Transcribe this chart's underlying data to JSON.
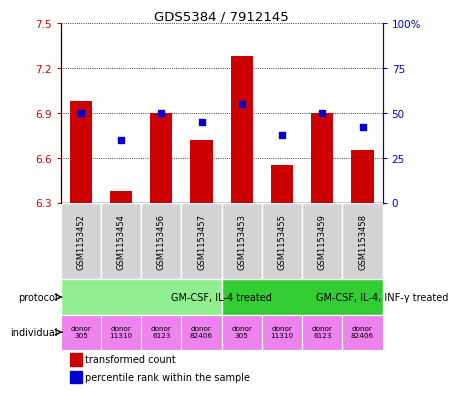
{
  "title": "GDS5384 / 7912145",
  "samples": [
    "GSM1153452",
    "GSM1153454",
    "GSM1153456",
    "GSM1153457",
    "GSM1153453",
    "GSM1153455",
    "GSM1153459",
    "GSM1153458"
  ],
  "bar_values": [
    6.98,
    6.38,
    6.9,
    6.72,
    7.28,
    6.55,
    6.9,
    6.65
  ],
  "dot_values": [
    50,
    35,
    50,
    45,
    55,
    38,
    50,
    42
  ],
  "ylim_left": [
    6.3,
    7.5
  ],
  "ylim_right": [
    0,
    100
  ],
  "yticks_left": [
    6.3,
    6.6,
    6.9,
    7.2,
    7.5
  ],
  "yticks_right": [
    0,
    25,
    50,
    75,
    100
  ],
  "ytick_labels_right": [
    "0",
    "25",
    "50",
    "75",
    "100%"
  ],
  "bar_color": "#cc0000",
  "dot_color": "#0000cc",
  "bar_bottom": 6.3,
  "protocols": [
    {
      "label": "GM-CSF, IL-4 treated",
      "span": [
        0,
        4
      ],
      "color": "#90ee90"
    },
    {
      "label": "GM-CSF, IL-4, INF-γ treated",
      "span": [
        4,
        8
      ],
      "color": "#32cd32"
    }
  ],
  "individuals": [
    {
      "label": "donor\n305",
      "color": "#ee82ee"
    },
    {
      "label": "donor\n11310",
      "color": "#ee82ee"
    },
    {
      "label": "donor\n6123",
      "color": "#ee82ee"
    },
    {
      "label": "donor\n82406",
      "color": "#ee82ee"
    },
    {
      "label": "donor\n305",
      "color": "#ee82ee"
    },
    {
      "label": "donor\n11310",
      "color": "#ee82ee"
    },
    {
      "label": "donor\n6123",
      "color": "#ee82ee"
    },
    {
      "label": "donor\n82406",
      "color": "#ee82ee"
    }
  ],
  "sample_bg_color": "#d3d3d3",
  "legend_bar_label": "transformed count",
  "legend_dot_label": "percentile rank within the sample",
  "protocol_label": "protocol",
  "individual_label": "individual",
  "left_axis_color": "#cc0000",
  "right_axis_color": "#0000cc"
}
